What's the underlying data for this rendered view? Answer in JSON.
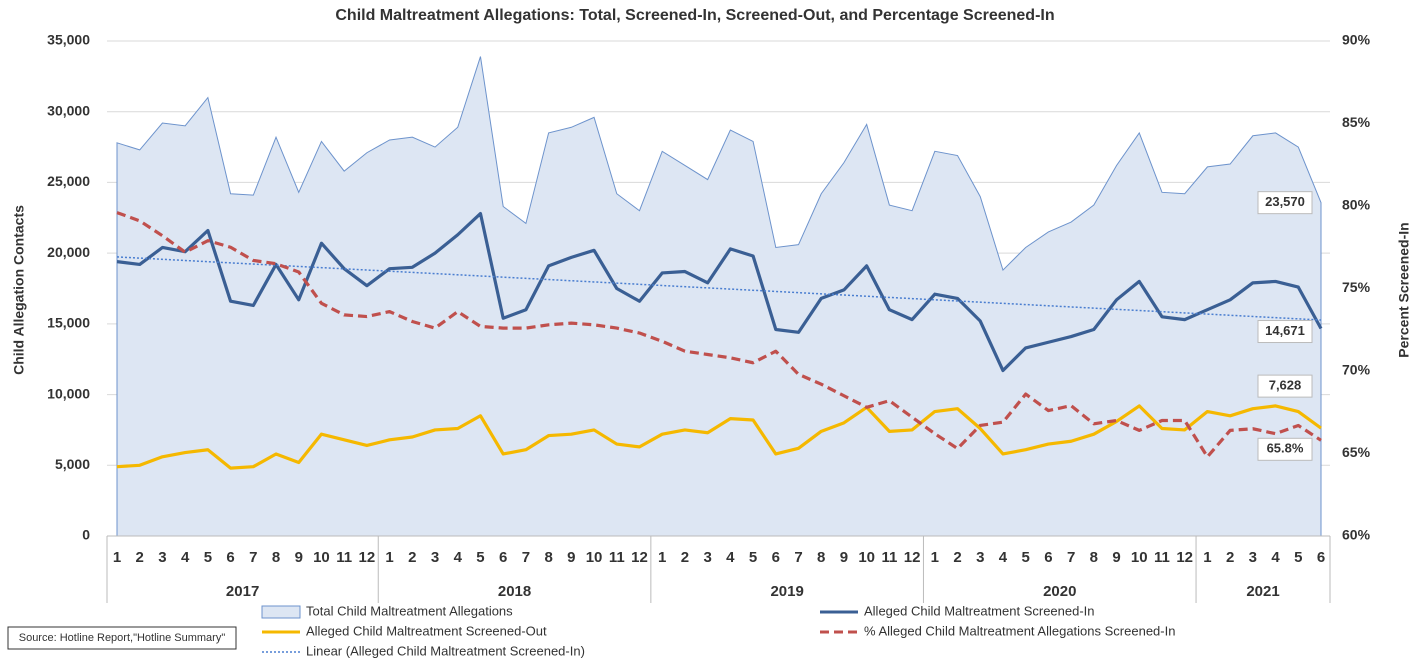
{
  "chart_data": {
    "type": "line",
    "title": "Child Maltreatment Allegations: Total, Screened-In, Screened-Out, and Percentage Screened-In",
    "ylabel": "Child Allegation Contacts",
    "y2label": "Percent Screened-In",
    "source": "Source: Hotline Report,\"Hotline Summary\"",
    "categories": [
      "1",
      "2",
      "3",
      "4",
      "5",
      "6",
      "7",
      "8",
      "9",
      "10",
      "11",
      "12",
      "1",
      "2",
      "3",
      "4",
      "5",
      "6",
      "7",
      "8",
      "9",
      "10",
      "11",
      "12",
      "1",
      "2",
      "3",
      "4",
      "5",
      "6",
      "7",
      "8",
      "9",
      "10",
      "11",
      "12",
      "1",
      "2",
      "3",
      "4",
      "5",
      "6",
      "7",
      "8",
      "9",
      "10",
      "11",
      "12",
      "1",
      "2",
      "3",
      "4",
      "5",
      "6"
    ],
    "category_groups": [
      {
        "label": "2017",
        "size": 12
      },
      {
        "label": "2018",
        "size": 12
      },
      {
        "label": "2019",
        "size": 12
      },
      {
        "label": "2020",
        "size": 12
      },
      {
        "label": "2021",
        "size": 6
      }
    ],
    "ylim": [
      0,
      35000
    ],
    "yticks": [
      0,
      {
        "value": 5000,
        "label": "5,000"
      },
      {
        "value": 10000,
        "label": "10,000"
      },
      {
        "value": 15000,
        "label": "15,000"
      },
      {
        "value": 20000,
        "label": "20,000"
      },
      {
        "value": 25000,
        "label": "25,000"
      },
      {
        "value": 30000,
        "label": "30,000"
      },
      {
        "value": 35000,
        "label": "35,000"
      }
    ],
    "y2lim": [
      60,
      90
    ],
    "y2ticks": [
      {
        "value": 60,
        "label": "60%"
      },
      {
        "value": 65,
        "label": "65%"
      },
      {
        "value": 70,
        "label": "70%"
      },
      {
        "value": 75,
        "label": "75%"
      },
      {
        "value": 80,
        "label": "80%"
      },
      {
        "value": 85,
        "label": "85%"
      },
      {
        "value": 90,
        "label": "90%"
      }
    ],
    "grid": true,
    "series": [
      {
        "name": "Total Child Maltreatment Allegations",
        "type": "area",
        "color": "#6d93cc",
        "fill": "#dde6f3",
        "values": [
          27800,
          27300,
          29200,
          29000,
          31000,
          24200,
          24100,
          28200,
          24300,
          27900,
          25800,
          27100,
          28000,
          28200,
          27500,
          28900,
          33900,
          23300,
          22100,
          28500,
          28900,
          29600,
          24200,
          23000,
          27200,
          26200,
          25200,
          28700,
          27900,
          20400,
          20600,
          24200,
          26400,
          29100,
          23400,
          23000,
          27200,
          26900,
          24000,
          18800,
          20400,
          21500,
          22200,
          23400,
          26200,
          28500,
          24300,
          24200,
          26100,
          26300,
          28300,
          28500,
          27500,
          23570
        ],
        "value_labels": [
          null,
          null,
          null,
          null,
          null,
          null,
          null,
          null,
          null,
          null,
          null,
          null,
          null,
          null,
          null,
          null,
          null,
          null,
          null,
          null,
          null,
          null,
          null,
          null,
          null,
          null,
          null,
          null,
          null,
          null,
          null,
          null,
          null,
          null,
          null,
          null,
          null,
          null,
          null,
          null,
          null,
          null,
          null,
          null,
          null,
          null,
          null,
          null,
          null,
          null,
          null,
          null,
          null,
          "23,570"
        ]
      },
      {
        "name": "Alleged Child Maltreatment Screened-In",
        "type": "line",
        "color": "#3a5f94",
        "values": [
          19400,
          19200,
          20400,
          20100,
          21600,
          16600,
          16300,
          19200,
          16700,
          20700,
          18900,
          17700,
          18900,
          19000,
          20000,
          21300,
          22800,
          15400,
          16000,
          19100,
          19700,
          20200,
          17500,
          16600,
          18600,
          18700,
          17900,
          20300,
          19800,
          14600,
          14400,
          16800,
          17400,
          19100,
          16000,
          15300,
          17100,
          16800,
          15200,
          11700,
          13300,
          13700,
          14100,
          14600,
          16700,
          18000,
          15500,
          15300,
          16000,
          16700,
          17900,
          18000,
          17600,
          14671
        ],
        "value_labels": [
          null,
          null,
          null,
          null,
          null,
          null,
          null,
          null,
          null,
          null,
          null,
          null,
          null,
          null,
          null,
          null,
          null,
          null,
          null,
          null,
          null,
          null,
          null,
          null,
          null,
          null,
          null,
          null,
          null,
          null,
          null,
          null,
          null,
          null,
          null,
          null,
          null,
          null,
          null,
          null,
          null,
          null,
          null,
          null,
          null,
          null,
          null,
          null,
          null,
          null,
          null,
          null,
          null,
          "14,671"
        ],
        "trendline": {
          "name": "Linear (Alleged Child Maltreatment Screened-In)",
          "color": "#4a7ed0"
        }
      },
      {
        "name": "Alleged Child Maltreatment Screened-Out",
        "type": "line",
        "color": "#f5b800",
        "values": [
          4900,
          5000,
          5600,
          5900,
          6100,
          4800,
          4900,
          5800,
          5200,
          7200,
          6800,
          6400,
          6800,
          7000,
          7500,
          7600,
          8500,
          5800,
          6100,
          7100,
          7200,
          7500,
          6500,
          6300,
          7200,
          7500,
          7300,
          8300,
          8200,
          5800,
          6200,
          7400,
          8000,
          9100,
          7400,
          7500,
          8800,
          9000,
          7600,
          5800,
          6100,
          6500,
          6700,
          7200,
          8100,
          9200,
          7600,
          7500,
          8800,
          8500,
          9000,
          9200,
          8800,
          7628
        ],
        "value_labels": [
          null,
          null,
          null,
          null,
          null,
          null,
          null,
          null,
          null,
          null,
          null,
          null,
          null,
          null,
          null,
          null,
          null,
          null,
          null,
          null,
          null,
          null,
          null,
          null,
          null,
          null,
          null,
          null,
          null,
          null,
          null,
          null,
          null,
          null,
          null,
          null,
          null,
          null,
          null,
          null,
          null,
          null,
          null,
          null,
          null,
          null,
          null,
          null,
          null,
          null,
          null,
          null,
          null,
          "7,628"
        ]
      },
      {
        "name": "% Alleged Child Maltreatment Allegations Screened-In",
        "type": "line",
        "dash": true,
        "axis": "y2",
        "color": "#c0504d",
        "values": [
          79.6,
          79.1,
          78.2,
          77.2,
          77.9,
          77.5,
          76.7,
          76.5,
          76.0,
          74.1,
          73.4,
          73.3,
          73.6,
          73.0,
          72.6,
          73.6,
          72.7,
          72.6,
          72.6,
          72.8,
          72.9,
          72.8,
          72.6,
          72.3,
          71.8,
          71.2,
          71.0,
          70.8,
          70.5,
          71.2,
          69.8,
          69.2,
          68.5,
          67.8,
          68.2,
          67.2,
          66.2,
          65.3,
          66.7,
          66.9,
          68.6,
          67.6,
          67.9,
          66.8,
          67.0,
          66.4,
          67.0,
          67.0,
          64.8,
          66.4,
          66.5,
          66.2,
          66.7,
          65.8
        ],
        "value_labels": [
          null,
          null,
          null,
          null,
          null,
          null,
          null,
          null,
          null,
          null,
          null,
          null,
          null,
          null,
          null,
          null,
          null,
          null,
          null,
          null,
          null,
          null,
          null,
          null,
          null,
          null,
          null,
          null,
          null,
          null,
          null,
          null,
          null,
          null,
          null,
          null,
          null,
          null,
          null,
          null,
          null,
          null,
          null,
          null,
          null,
          null,
          null,
          null,
          null,
          null,
          null,
          null,
          null,
          "65.8%"
        ]
      }
    ]
  }
}
